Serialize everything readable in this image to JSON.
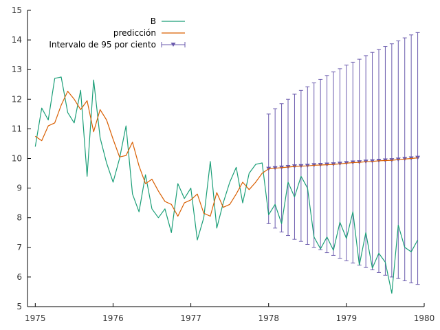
{
  "chart_data": {
    "type": "line",
    "xlim": [
      1974.9,
      1980.0
    ],
    "ylim": [
      5,
      15
    ],
    "x_ticks": [
      1975,
      1976,
      1977,
      1978,
      1979,
      1980
    ],
    "y_ticks": [
      5,
      6,
      7,
      8,
      9,
      10,
      11,
      12,
      13,
      14,
      15
    ],
    "grid": false,
    "legend_position": "top-center",
    "colors": {
      "B": "#1a9e77",
      "prediccion": "#d95f02",
      "intervalo": "#6a5aad"
    },
    "legend": [
      "B",
      "predicción",
      "Intervalo de 95 por ciento"
    ],
    "series": [
      {
        "name": "B",
        "x": [
          1975.0,
          1975.0833,
          1975.1667,
          1975.25,
          1975.3333,
          1975.4167,
          1975.5,
          1975.5833,
          1975.6667,
          1975.75,
          1975.8333,
          1975.9167,
          1976.0,
          1976.0833,
          1976.1667,
          1976.25,
          1976.3333,
          1976.4167,
          1976.5,
          1976.5833,
          1976.6667,
          1976.75,
          1976.8333,
          1976.9167,
          1977.0,
          1977.0833,
          1977.1667,
          1977.25,
          1977.3333,
          1977.4167,
          1977.5,
          1977.5833,
          1977.6667,
          1977.75,
          1977.8333,
          1977.9167,
          1978.0,
          1978.0833,
          1978.1667,
          1978.25,
          1978.3333,
          1978.4167,
          1978.5,
          1978.5833,
          1978.6667,
          1978.75,
          1978.8333,
          1978.9167,
          1979.0,
          1979.0833,
          1979.1667,
          1979.25,
          1979.3333,
          1979.4167,
          1979.5,
          1979.5833,
          1979.6667,
          1979.75,
          1979.8333,
          1979.9167
        ],
        "values": [
          10.4,
          11.7,
          11.3,
          12.7,
          12.75,
          11.55,
          11.2,
          12.3,
          9.4,
          12.65,
          10.7,
          9.85,
          9.2,
          10.0,
          11.1,
          8.8,
          8.2,
          9.45,
          8.3,
          8.0,
          8.3,
          7.5,
          9.15,
          8.65,
          9.0,
          7.25,
          8.0,
          9.9,
          7.65,
          8.5,
          9.2,
          9.7,
          8.5,
          9.5,
          9.8,
          9.85,
          8.1,
          8.45,
          7.8,
          9.2,
          8.7,
          9.4,
          9.0,
          7.35,
          6.95,
          7.35,
          6.9,
          7.85,
          7.3,
          8.2,
          6.4,
          7.5,
          6.3,
          6.8,
          6.5,
          5.45,
          7.75,
          7.0,
          6.85,
          7.25
        ]
      },
      {
        "name": "predicción",
        "x": [
          1975.0,
          1975.0833,
          1975.1667,
          1975.25,
          1975.3333,
          1975.4167,
          1975.5,
          1975.5833,
          1975.6667,
          1975.75,
          1975.8333,
          1975.9167,
          1976.0,
          1976.0833,
          1976.1667,
          1976.25,
          1976.3333,
          1976.4167,
          1976.5,
          1976.5833,
          1976.6667,
          1976.75,
          1976.8333,
          1976.9167,
          1977.0,
          1977.0833,
          1977.1667,
          1977.25,
          1977.3333,
          1977.4167,
          1977.5,
          1977.5833,
          1977.6667,
          1977.75,
          1977.8333,
          1977.9167,
          1978.0,
          1978.0833,
          1978.1667,
          1978.25,
          1978.3333,
          1978.4167,
          1978.5,
          1978.5833,
          1978.6667,
          1978.75,
          1978.8333,
          1978.9167,
          1979.0,
          1979.0833,
          1979.1667,
          1979.25,
          1979.3333,
          1979.4167,
          1979.5,
          1979.5833,
          1979.6667,
          1979.75,
          1979.8333,
          1979.9167
        ],
        "values": [
          10.75,
          10.6,
          11.1,
          11.2,
          11.8,
          12.27,
          12.0,
          11.65,
          11.95,
          10.9,
          11.65,
          11.3,
          10.65,
          10.05,
          10.1,
          10.55,
          9.75,
          9.15,
          9.3,
          8.9,
          8.55,
          8.45,
          8.05,
          8.5,
          8.6,
          8.8,
          8.15,
          8.05,
          8.85,
          8.35,
          8.45,
          8.8,
          9.2,
          8.95,
          9.2,
          9.5,
          9.65,
          9.67,
          9.69,
          9.71,
          9.73,
          9.74,
          9.75,
          9.77,
          9.78,
          9.79,
          9.8,
          9.82,
          9.84,
          9.86,
          9.87,
          9.89,
          9.9,
          9.92,
          9.93,
          9.94,
          9.96,
          9.98,
          10.0,
          10.02
        ]
      },
      {
        "name": "Intervalo de 95 por ciento",
        "x": [
          1978.0,
          1978.0833,
          1978.1667,
          1978.25,
          1978.3333,
          1978.4167,
          1978.5,
          1978.5833,
          1978.6667,
          1978.75,
          1978.8333,
          1978.9167,
          1979.0,
          1979.0833,
          1979.1667,
          1979.25,
          1979.3333,
          1979.4167,
          1979.5,
          1979.5833,
          1979.6667,
          1979.75,
          1979.8333,
          1979.9167
        ],
        "center": [
          9.65,
          9.67,
          9.69,
          9.71,
          9.73,
          9.74,
          9.75,
          9.77,
          9.78,
          9.79,
          9.8,
          9.82,
          9.84,
          9.86,
          9.87,
          9.89,
          9.9,
          9.92,
          9.93,
          9.94,
          9.96,
          9.98,
          10.0,
          10.02
        ],
        "lower": [
          7.8,
          7.65,
          7.52,
          7.4,
          7.27,
          7.2,
          7.1,
          7.0,
          6.92,
          6.82,
          6.73,
          6.63,
          6.55,
          6.47,
          6.4,
          6.32,
          6.24,
          6.15,
          6.06,
          6.0,
          5.95,
          5.87,
          5.8,
          5.75
        ],
        "upper": [
          11.5,
          11.68,
          11.85,
          12.0,
          12.17,
          12.3,
          12.42,
          12.55,
          12.67,
          12.8,
          12.92,
          13.03,
          13.15,
          13.25,
          13.35,
          13.47,
          13.58,
          13.68,
          13.78,
          13.87,
          13.97,
          14.07,
          14.17,
          14.25
        ]
      }
    ]
  }
}
